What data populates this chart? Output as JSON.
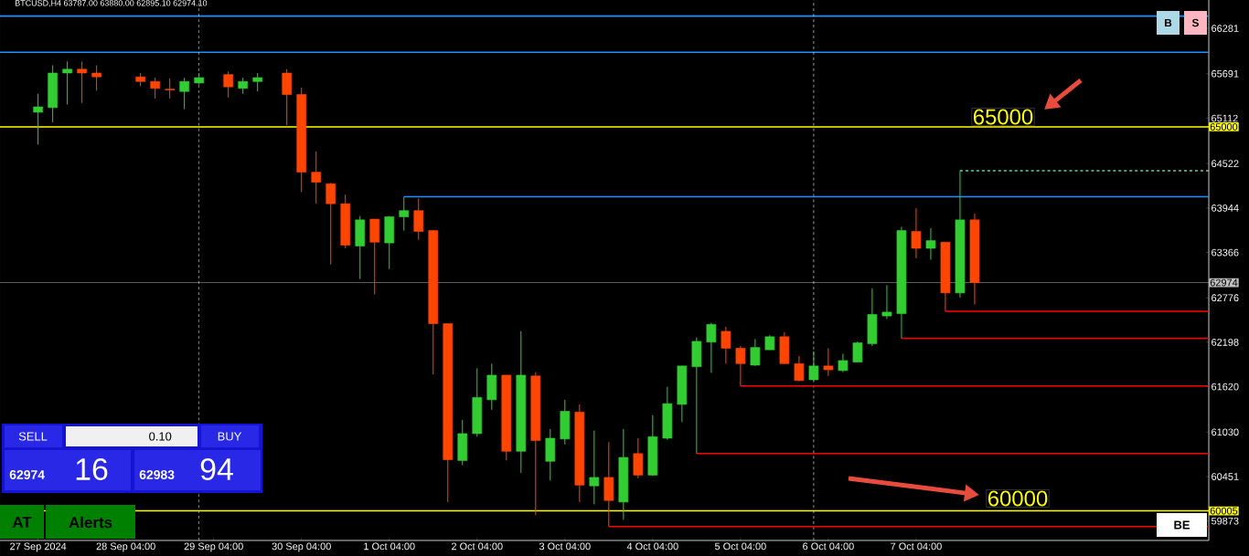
{
  "chart_data": {
    "type": "candlestick",
    "title": "BTCUSD,H4  63787.00 63880.00 62895.10 62974.10",
    "x": [
      "2024-09-27T04:00",
      "2024-09-27T08:00",
      "2024-09-27T12:00",
      "2024-09-27T16:00",
      "2024-09-27T20:00",
      "2024-09-28T08:00",
      "2024-09-28T12:00",
      "2024-09-28T16:00",
      "2024-09-28T20:00",
      "2024-09-29T00:00",
      "2024-09-29T08:00",
      "2024-09-29T12:00",
      "2024-09-29T16:00",
      "2024-09-30T00:00",
      "2024-09-30T04:00",
      "2024-09-30T08:00",
      "2024-09-30T12:00",
      "2024-09-30T16:00",
      "2024-09-30T20:00",
      "2024-10-01T00:00",
      "2024-10-01T04:00",
      "2024-10-01T08:00",
      "2024-10-01T12:00",
      "2024-10-01T16:00",
      "2024-10-01T20:00",
      "2024-10-02T00:00",
      "2024-10-02T04:00",
      "2024-10-02T08:00",
      "2024-10-02T12:00",
      "2024-10-02T16:00",
      "2024-10-02T20:00",
      "2024-10-03T00:00",
      "2024-10-03T04:00",
      "2024-10-03T08:00",
      "2024-10-03T12:00",
      "2024-10-03T16:00",
      "2024-10-03T20:00",
      "2024-10-04T00:00",
      "2024-10-04T04:00",
      "2024-10-04T08:00",
      "2024-10-04T12:00",
      "2024-10-04T16:00",
      "2024-10-04T20:00",
      "2024-10-05T00:00",
      "2024-10-05T04:00",
      "2024-10-05T08:00",
      "2024-10-05T12:00",
      "2024-10-05T16:00",
      "2024-10-05T20:00",
      "2024-10-06T00:00",
      "2024-10-06T04:00",
      "2024-10-06T08:00",
      "2024-10-06T12:00",
      "2024-10-06T16:00",
      "2024-10-06T20:00",
      "2024-10-07T00:00",
      "2024-10-07T04:00",
      "2024-10-07T08:00",
      "2024-10-07T12:00",
      "2024-10-07T16:00",
      "2024-10-07T20:00"
    ],
    "ohlc": [
      [
        65190,
        65430,
        64770,
        65260
      ],
      [
        65250,
        65800,
        65060,
        65700
      ],
      [
        65700,
        65850,
        65290,
        65750
      ],
      [
        65750,
        65850,
        65310,
        65700
      ],
      [
        65700,
        65800,
        65470,
        65650
      ],
      [
        65650,
        65700,
        65530,
        65590
      ],
      [
        65590,
        65640,
        65370,
        65500
      ],
      [
        65490,
        65630,
        65370,
        65480
      ],
      [
        65460,
        65640,
        65230,
        65590
      ],
      [
        65570,
        65700,
        65550,
        65640
      ],
      [
        65680,
        65720,
        65380,
        65520
      ],
      [
        65500,
        65640,
        65430,
        65590
      ],
      [
        65590,
        65700,
        65460,
        65640
      ],
      [
        65700,
        65750,
        65020,
        65420
      ],
      [
        65420,
        65510,
        64150,
        64410
      ],
      [
        64410,
        64680,
        64000,
        64280
      ],
      [
        64260,
        64270,
        63210,
        64000
      ],
      [
        64000,
        64120,
        63420,
        63460
      ],
      [
        63450,
        63840,
        63020,
        63790
      ],
      [
        63800,
        63800,
        62820,
        63500
      ],
      [
        63490,
        63840,
        63150,
        63830
      ],
      [
        63830,
        64090,
        63650,
        63910
      ],
      [
        63910,
        64070,
        63530,
        63640
      ],
      [
        63650,
        63660,
        61780,
        62440
      ],
      [
        62440,
        62440,
        60120,
        60670
      ],
      [
        60660,
        61190,
        60600,
        61010
      ],
      [
        61010,
        61860,
        60970,
        61480
      ],
      [
        61450,
        61920,
        61320,
        61770
      ],
      [
        61770,
        61770,
        60660,
        60780
      ],
      [
        60780,
        62340,
        60500,
        61770
      ],
      [
        61760,
        61810,
        59950,
        60920
      ],
      [
        60650,
        61070,
        60400,
        60950
      ],
      [
        60940,
        61450,
        60870,
        61300
      ],
      [
        61290,
        61390,
        60120,
        60340
      ],
      [
        60330,
        61050,
        60090,
        60440
      ],
      [
        60440,
        60900,
        59800,
        60140
      ],
      [
        60120,
        61070,
        59890,
        60700
      ],
      [
        60750,
        60950,
        60430,
        60470
      ],
      [
        60470,
        61250,
        60460,
        60970
      ],
      [
        60950,
        61620,
        60930,
        61400
      ],
      [
        61390,
        61890,
        61160,
        61890
      ],
      [
        61880,
        62260,
        60750,
        62210
      ],
      [
        62200,
        62450,
        61800,
        62430
      ],
      [
        62340,
        62400,
        61920,
        62120
      ],
      [
        62120,
        62150,
        61630,
        61920
      ],
      [
        61900,
        62240,
        61890,
        62130
      ],
      [
        62100,
        62290,
        62100,
        62270
      ],
      [
        62270,
        62330,
        61920,
        61920
      ],
      [
        61920,
        62020,
        61690,
        61700
      ],
      [
        61710,
        62080,
        61700,
        61890
      ],
      [
        61890,
        62120,
        61760,
        61840
      ],
      [
        61830,
        62050,
        61810,
        61960
      ],
      [
        61940,
        62210,
        61940,
        62190
      ],
      [
        62180,
        62900,
        62150,
        62560
      ],
      [
        62540,
        62940,
        62500,
        62590
      ],
      [
        62570,
        63700,
        62250,
        63650
      ],
      [
        63640,
        63940,
        63290,
        63420
      ],
      [
        63420,
        63680,
        63270,
        63520
      ],
      [
        63500,
        63500,
        62600,
        62840
      ],
      [
        62840,
        64430,
        62780,
        63790
      ],
      [
        63790,
        63870,
        62690,
        62974
      ]
    ],
    "colors": [
      "#32cd32",
      "#32cd32",
      "#32cd32",
      "#ff4500",
      "#ff4500",
      "#ff4500",
      "#ff4500",
      "#ff4500",
      "#32cd32",
      "#32cd32",
      "#ff4500",
      "#32cd32",
      "#32cd32",
      "#ff4500",
      "#ff4500",
      "#ff4500",
      "#ff4500",
      "#ff4500",
      "#32cd32",
      "#ff4500",
      "#32cd32",
      "#32cd32",
      "#ff4500",
      "#ff4500",
      "#ff4500",
      "#32cd32",
      "#32cd32",
      "#32cd32",
      "#ff4500",
      "#32cd32",
      "#ff4500",
      "#32cd32",
      "#32cd32",
      "#ff4500",
      "#32cd32",
      "#ff4500",
      "#32cd32",
      "#ff4500",
      "#32cd32",
      "#32cd32",
      "#32cd32",
      "#32cd32",
      "#32cd32",
      "#ff4500",
      "#ff4500",
      "#32cd32",
      "#32cd32",
      "#ff4500",
      "#ff4500",
      "#32cd32",
      "#ff4500",
      "#32cd32",
      "#32cd32",
      "#32cd32",
      "#32cd32",
      "#32cd32",
      "#ff4500",
      "#32cd32",
      "#ff4500",
      "#32cd32",
      "#ff4500"
    ],
    "series": [
      {
        "type": "line",
        "color": "#1e90ff",
        "x": [
          "2024-10-01T08:00",
          "2024-10-10T12:00"
        ],
        "values": [
          64090,
          64090
        ]
      },
      {
        "type": "line",
        "color": "#66cdaa",
        "line_style": "dashed",
        "x": [
          "2024-10-07T16:00",
          "2024-10-10T12:00"
        ],
        "values": [
          64430,
          64430
        ]
      },
      {
        "type": "line",
        "color": "#ff0000",
        "x": [
          "2024-10-03T16:00",
          "2024-10-10T12:00"
        ],
        "values": [
          59800,
          59800
        ]
      },
      {
        "type": "line",
        "color": "#ff0000",
        "x": [
          "2024-10-04T16:00",
          "2024-10-10T12:00"
        ],
        "values": [
          60750,
          60750
        ]
      },
      {
        "type": "line",
        "color": "#ff0000",
        "x": [
          "2024-10-05T04:00",
          "2024-10-10T12:00"
        ],
        "values": [
          61630,
          61630
        ]
      },
      {
        "type": "line",
        "color": "#ff0000",
        "x": [
          "2024-10-07T00:00",
          "2024-10-10T12:00"
        ],
        "values": [
          62250,
          62250
        ]
      },
      {
        "type": "line",
        "color": "#ff0000",
        "x": [
          "2024-10-07T12:00",
          "2024-10-10T12:00"
        ],
        "values": [
          62600,
          62600
        ]
      }
    ],
    "ref_lines": [
      {
        "axis": "y",
        "value": 66440,
        "color": "#1e90ff"
      },
      {
        "axis": "y",
        "value": 65970,
        "color": "#1e90ff"
      },
      {
        "axis": "y",
        "value": 65000,
        "label": "65000",
        "color": "#ffff00"
      },
      {
        "axis": "y",
        "value": 60005,
        "label": "60005",
        "color": "#ffff00"
      },
      {
        "axis": "y",
        "value": 62974,
        "label": "62974",
        "color": "#c0c0c0"
      },
      {
        "axis": "x",
        "value": "2024-09-29T00:00",
        "color": "#ffffff",
        "line_style": "dashed"
      },
      {
        "axis": "x",
        "value": "2024-10-06T00:00",
        "color": "#ffffff",
        "line_style": "dashed"
      }
    ],
    "annotations": [
      "65000",
      "60000",
      "SELL",
      "0.10",
      "BUY",
      "62974",
      "16",
      "62983",
      "94",
      "AT",
      "Alerts",
      "B",
      "S",
      "BE"
    ],
    "xlim": [
      "2024-09-26T17:36",
      "2024-10-10T12:00"
    ],
    "ylim": [
      59620,
      66650
    ],
    "xticks": [
      {
        "value": "2024-09-27T04:00",
        "label": "27 Sep 2024"
      },
      {
        "value": "2024-09-28T04:00",
        "label": "28 Sep 04:00"
      },
      {
        "value": "2024-09-29T04:00",
        "label": "29 Sep 04:00"
      },
      {
        "value": "2024-09-30T04:00",
        "label": "30 Sep 04:00"
      },
      {
        "value": "2024-10-01T04:00",
        "label": "1 Oct 04:00"
      },
      {
        "value": "2024-10-02T04:00",
        "label": "2 Oct 04:00"
      },
      {
        "value": "2024-10-03T04:00",
        "label": "3 Oct 04:00"
      },
      {
        "value": "2024-10-04T04:00",
        "label": "4 Oct 04:00"
      },
      {
        "value": "2024-10-05T04:00",
        "label": "5 Oct 04:00"
      },
      {
        "value": "2024-10-06T04:00",
        "label": "6 Oct 04:00"
      },
      {
        "value": "2024-10-07T04:00",
        "label": "7 Oct 04:00"
      }
    ],
    "yticks": [
      66281,
      65691,
      65112,
      64522,
      63944,
      63366,
      62776,
      62198,
      61620,
      61030,
      60451,
      59873
    ]
  }
}
